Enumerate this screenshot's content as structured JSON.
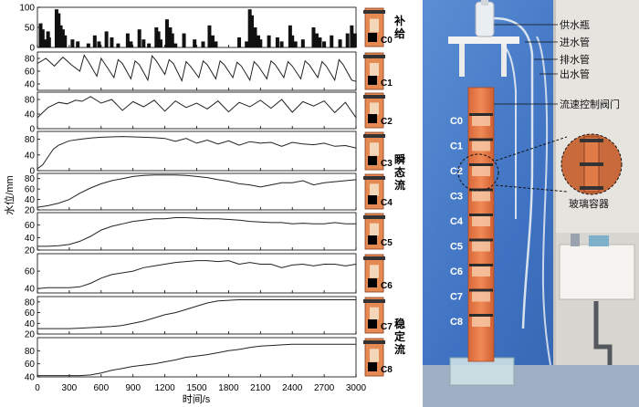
{
  "chart_data": {
    "type": "line",
    "xlabel": "时间/s",
    "ylabel": "水位/mm",
    "xlim": [
      0,
      3000
    ],
    "xticks": [
      0,
      300,
      600,
      900,
      1200,
      1500,
      1800,
      2100,
      2400,
      2700,
      3000
    ],
    "group_labels": [
      {
        "text": "补给",
        "panels": [
          0
        ]
      },
      {
        "text": "瞬态流",
        "panels": [
          1,
          2,
          3,
          4,
          5,
          6
        ]
      },
      {
        "text": "稳定流",
        "panels": [
          7,
          8
        ]
      }
    ],
    "panels": [
      {
        "name": "C0",
        "type": "bar",
        "ylim": [
          0,
          100
        ],
        "yticks": [
          0,
          50,
          100
        ],
        "bars": [
          [
            30,
            60
          ],
          [
            50,
            45
          ],
          [
            70,
            20
          ],
          [
            100,
            40
          ],
          [
            110,
            25
          ],
          [
            180,
            95
          ],
          [
            200,
            85
          ],
          [
            220,
            55
          ],
          [
            240,
            45
          ],
          [
            260,
            30
          ],
          [
            330,
            20
          ],
          [
            380,
            15
          ],
          [
            480,
            10
          ],
          [
            540,
            30
          ],
          [
            580,
            15
          ],
          [
            650,
            40
          ],
          [
            700,
            25
          ],
          [
            760,
            10
          ],
          [
            850,
            35
          ],
          [
            880,
            15
          ],
          [
            960,
            45
          ],
          [
            1000,
            20
          ],
          [
            1050,
            10
          ],
          [
            1120,
            50
          ],
          [
            1140,
            40
          ],
          [
            1160,
            20
          ],
          [
            1220,
            70
          ],
          [
            1250,
            50
          ],
          [
            1270,
            35
          ],
          [
            1300,
            10
          ],
          [
            1380,
            35
          ],
          [
            1480,
            20
          ],
          [
            1560,
            15
          ],
          [
            1620,
            55
          ],
          [
            1650,
            30
          ],
          [
            1680,
            15
          ],
          [
            1900,
            25
          ],
          [
            1970,
            15
          ],
          [
            2000,
            95
          ],
          [
            2020,
            80
          ],
          [
            2050,
            50
          ],
          [
            2080,
            30
          ],
          [
            2100,
            20
          ],
          [
            2180,
            30
          ],
          [
            2260,
            25
          ],
          [
            2300,
            15
          ],
          [
            2380,
            55
          ],
          [
            2400,
            30
          ],
          [
            2430,
            15
          ],
          [
            2500,
            20
          ],
          [
            2600,
            50
          ],
          [
            2630,
            35
          ],
          [
            2660,
            25
          ],
          [
            2700,
            15
          ],
          [
            2770,
            30
          ],
          [
            2850,
            20
          ],
          [
            2920,
            35
          ],
          [
            2960,
            55
          ],
          [
            2990,
            35
          ]
        ]
      },
      {
        "name": "C1",
        "ylim": [
          30,
          90
        ],
        "yticks": [
          40,
          60,
          80
        ],
        "x": [
          0,
          80,
          160,
          240,
          320,
          400,
          440,
          480,
          560,
          600,
          640,
          720,
          760,
          800,
          880,
          920,
          960,
          1040,
          1080,
          1120,
          1200,
          1240,
          1280,
          1360,
          1400,
          1440,
          1520,
          1560,
          1600,
          1680,
          1720,
          1760,
          1840,
          1880,
          1920,
          2000,
          2040,
          2080,
          2160,
          2200,
          2240,
          2320,
          2360,
          2400,
          2480,
          2520,
          2560,
          2640,
          2680,
          2720,
          2800,
          2840,
          2880,
          2960,
          3000
        ],
        "y": [
          72,
          80,
          68,
          82,
          70,
          60,
          85,
          75,
          52,
          80,
          70,
          50,
          78,
          72,
          48,
          76,
          70,
          46,
          84,
          76,
          55,
          78,
          72,
          45,
          75,
          68,
          50,
          76,
          70,
          48,
          76,
          70,
          50,
          74,
          68,
          46,
          75,
          68,
          48,
          76,
          70,
          50,
          75,
          68,
          48,
          76,
          70,
          50,
          75,
          68,
          46,
          78,
          70,
          46,
          44
        ]
      },
      {
        "name": "C2",
        "ylim": [
          0,
          100
        ],
        "yticks": [
          0,
          40,
          80
        ],
        "x": [
          0,
          100,
          200,
          280,
          360,
          420,
          500,
          600,
          700,
          800,
          900,
          1000,
          1100,
          1200,
          1300,
          1400,
          1500,
          1600,
          1700,
          1800,
          1900,
          2000,
          2100,
          2200,
          2300,
          2400,
          2500,
          2600,
          2700,
          2800,
          2900,
          3000
        ],
        "y": [
          30,
          58,
          72,
          68,
          78,
          75,
          88,
          70,
          80,
          50,
          74,
          60,
          78,
          48,
          76,
          58,
          70,
          54,
          76,
          46,
          72,
          60,
          78,
          56,
          80,
          45,
          74,
          62,
          76,
          44,
          72,
          30
        ]
      },
      {
        "name": "C3",
        "ylim": [
          0,
          100
        ],
        "yticks": [
          0,
          40,
          80
        ],
        "x": [
          0,
          50,
          100,
          150,
          200,
          300,
          400,
          500,
          600,
          700,
          800,
          900,
          1000,
          1100,
          1200,
          1300,
          1400,
          1500,
          1600,
          1700,
          1800,
          1900,
          2000,
          2100,
          2200,
          2300,
          2400,
          2500,
          2600,
          2700,
          2800,
          2900,
          3000
        ],
        "y": [
          5,
          15,
          35,
          55,
          65,
          76,
          80,
          83,
          85,
          86,
          87,
          86,
          85,
          84,
          82,
          75,
          82,
          70,
          78,
          68,
          76,
          65,
          74,
          70,
          72,
          62,
          72,
          68,
          66,
          70,
          62,
          64,
          58
        ]
      },
      {
        "name": "C4",
        "ylim": [
          20,
          90
        ],
        "yticks": [
          20,
          40,
          60,
          80
        ],
        "x": [
          0,
          100,
          200,
          300,
          400,
          500,
          600,
          700,
          800,
          900,
          1000,
          1100,
          1200,
          1300,
          1400,
          1500,
          1600,
          1700,
          1800,
          1900,
          2000,
          2100,
          2200,
          2300,
          2400,
          2500,
          2600,
          2700,
          2800,
          2900,
          3000
        ],
        "y": [
          25,
          28,
          33,
          40,
          52,
          62,
          70,
          76,
          80,
          84,
          86,
          87,
          87,
          87,
          86,
          84,
          82,
          78,
          75,
          70,
          68,
          64,
          68,
          72,
          72,
          76,
          68,
          72,
          74,
          76,
          78
        ]
      },
      {
        "name": "C5",
        "ylim": [
          20,
          80
        ],
        "yticks": [
          20,
          40,
          60
        ],
        "x": [
          0,
          100,
          200,
          300,
          400,
          500,
          600,
          700,
          800,
          900,
          1000,
          1100,
          1200,
          1300,
          1400,
          1500,
          1600,
          1700,
          1800,
          1900,
          2000,
          2100,
          2200,
          2300,
          2400,
          2500,
          2600,
          2700,
          2800,
          2900,
          3000
        ],
        "y": [
          26,
          26,
          27,
          29,
          34,
          42,
          52,
          58,
          62,
          66,
          68,
          70,
          70,
          72,
          72,
          71,
          70,
          70,
          69,
          68,
          66,
          65,
          64,
          64,
          62,
          63,
          62,
          62,
          64,
          62,
          62
        ]
      },
      {
        "name": "C6",
        "ylim": [
          35,
          80
        ],
        "yticks": [
          40,
          60
        ],
        "x": [
          0,
          100,
          200,
          300,
          400,
          500,
          600,
          700,
          800,
          900,
          1000,
          1100,
          1200,
          1300,
          1400,
          1500,
          1600,
          1700,
          1800,
          1900,
          2000,
          2100,
          2200,
          2300,
          2400,
          2500,
          2600,
          2700,
          2800,
          2900,
          3000
        ],
        "y": [
          40,
          41,
          41,
          41,
          42,
          46,
          52,
          56,
          58,
          60,
          64,
          66,
          68,
          70,
          71,
          72,
          72,
          71,
          72,
          68,
          70,
          68,
          68,
          64,
          67,
          68,
          66,
          68,
          68,
          66,
          68
        ]
      },
      {
        "name": "C7",
        "ylim": [
          20,
          90
        ],
        "yticks": [
          20,
          40,
          60,
          80
        ],
        "x": [
          0,
          100,
          200,
          300,
          400,
          500,
          600,
          700,
          800,
          900,
          1000,
          1100,
          1200,
          1300,
          1400,
          1500,
          1600,
          1700,
          1800,
          1900,
          2000,
          2100,
          2200,
          2300,
          2400,
          2500,
          2600,
          2700,
          2800,
          2900,
          3000
        ],
        "y": [
          30,
          30,
          30,
          30,
          31,
          32,
          33,
          34,
          36,
          40,
          44,
          50,
          56,
          60,
          66,
          72,
          78,
          82,
          83,
          84,
          84,
          84,
          84,
          84,
          84,
          84,
          84,
          84,
          84,
          84,
          84
        ]
      },
      {
        "name": "C8",
        "ylim": [
          40,
          100
        ],
        "yticks": [
          40,
          60,
          80
        ],
        "x": [
          0,
          100,
          200,
          300,
          400,
          500,
          600,
          700,
          800,
          900,
          1000,
          1100,
          1200,
          1300,
          1400,
          1500,
          1600,
          1700,
          1800,
          1900,
          2000,
          2100,
          2200,
          2300,
          2400,
          2500,
          2600,
          2700,
          2800,
          2900,
          3000
        ],
        "y": [
          42,
          42,
          42,
          42,
          42,
          43,
          46,
          50,
          53,
          56,
          58,
          60,
          63,
          66,
          70,
          72,
          74,
          77,
          80,
          82,
          85,
          87,
          88,
          89,
          90,
          90,
          90,
          90,
          90,
          90,
          90
        ]
      }
    ]
  },
  "photo": {
    "levels": [
      "C0",
      "C1",
      "C2",
      "C3",
      "C4",
      "C5",
      "C6",
      "C7",
      "C8"
    ],
    "callouts": [
      "供水瓶",
      "进水管",
      "排水管",
      "出水管",
      "流速控制阀门",
      "玻璃容器"
    ]
  }
}
